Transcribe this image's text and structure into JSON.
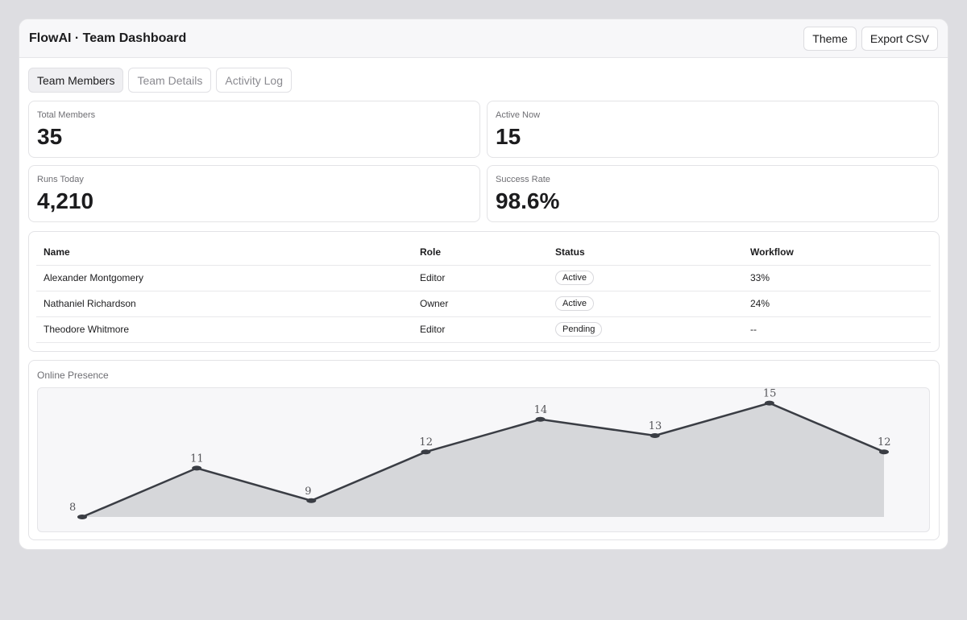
{
  "window": {
    "title": "FlowAI · Team Dashboard"
  },
  "toolbar": {
    "theme_label": "Theme",
    "export_label": "Export CSV"
  },
  "tabs": [
    {
      "label": "Team Members",
      "active": true
    },
    {
      "label": "Team Details",
      "active": false
    },
    {
      "label": "Activity Log",
      "active": false
    }
  ],
  "stats": [
    {
      "label": "Total Members",
      "value": "35"
    },
    {
      "label": "Active Now",
      "value": "15"
    },
    {
      "label": "Runs Today",
      "value": "4,210"
    },
    {
      "label": "Success Rate",
      "value": "98.6%"
    }
  ],
  "table": {
    "headers": [
      "Name",
      "Role",
      "Status",
      "Workflow"
    ],
    "rows": [
      {
        "name": "Alexander Montgomery",
        "role": "Editor",
        "status": "Active",
        "workflow": "33%"
      },
      {
        "name": "Nathaniel Richardson",
        "role": "Owner",
        "status": "Active",
        "workflow": "24%"
      },
      {
        "name": "Theodore Whitmore",
        "role": "Editor",
        "status": "Pending",
        "workflow": "--"
      }
    ]
  },
  "chart_data": {
    "type": "area",
    "title": "Online Presence",
    "values": [
      8,
      11,
      9,
      12,
      14,
      13,
      15,
      12
    ],
    "line_color": "#3a3d44",
    "fill_color": "#d6d7da"
  }
}
